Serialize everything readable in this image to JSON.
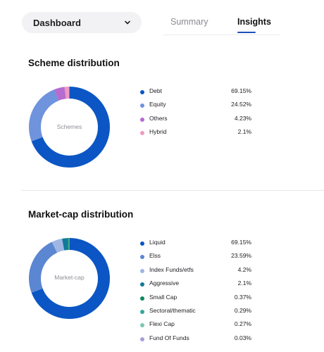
{
  "header": {
    "dropdown_label": "Dashboard",
    "tabs": [
      {
        "label": "Summary",
        "active": false
      },
      {
        "label": "Insights",
        "active": true
      }
    ],
    "accent_color": "#1d4fb8"
  },
  "scheme": {
    "title": "Scheme distribution",
    "center_label": "Schemes",
    "items": [
      {
        "name": "Debt",
        "pct": "69.15%",
        "value": 69.15,
        "color": "#0b56c4"
      },
      {
        "name": "Equity",
        "pct": "24.52%",
        "value": 24.52,
        "color": "#6f93dc"
      },
      {
        "name": "Others",
        "pct": "4.23%",
        "value": 4.23,
        "color": "#b56bd0"
      },
      {
        "name": "Hybrid",
        "pct": "2.1%",
        "value": 2.1,
        "color": "#f09ac0"
      }
    ]
  },
  "marketcap": {
    "title": "Market-cap distribution",
    "center_label": "Market-cap",
    "items": [
      {
        "name": "Liquid",
        "pct": "69.15%",
        "value": 69.15,
        "color": "#0b56c4"
      },
      {
        "name": "Elss",
        "pct": "23.59%",
        "value": 23.59,
        "color": "#5b86d2"
      },
      {
        "name": "Index Funds/etfs",
        "pct": "4.2%",
        "value": 4.2,
        "color": "#9fb6e4"
      },
      {
        "name": "Aggressive",
        "pct": "2.1%",
        "value": 2.1,
        "color": "#117a98"
      },
      {
        "name": "Small Cap",
        "pct": "0.37%",
        "value": 0.37,
        "color": "#0a8a5a"
      },
      {
        "name": "Sectoral/thematic",
        "pct": "0.29%",
        "value": 0.29,
        "color": "#36a89a"
      },
      {
        "name": "Flexi Cap",
        "pct": "0.27%",
        "value": 0.27,
        "color": "#7cc7b4"
      },
      {
        "name": "Fund Of Funds",
        "pct": "0.03%",
        "value": 0.03,
        "color": "#a89fd8"
      }
    ]
  }
}
